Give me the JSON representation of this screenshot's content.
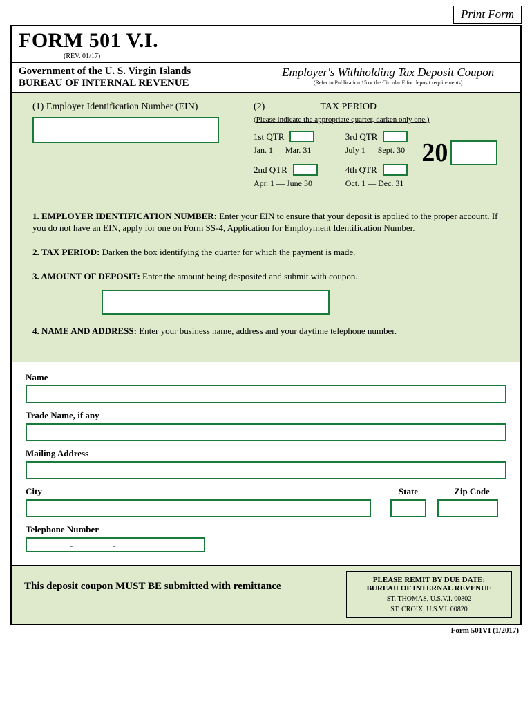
{
  "print_button": "Print Form",
  "header": {
    "form_title": "FORM 501 V.I.",
    "revision": "(REV. 01/17)",
    "govt_line1": "Government of the U. S.  Virgin Islands",
    "govt_line2": "BUREAU OF INTERNAL REVENUE",
    "employer_title": "Employer's Withholding Tax Deposit Coupon",
    "employer_sub": "(Refer to Publication 15 or the Circular E for deposit requirements)"
  },
  "section1": {
    "ein_label": "(1) Employer Identification Number (EIN)",
    "tax_num": "(2)",
    "tax_label": "TAX PERIOD",
    "tax_instruction": "(Please indicate the appropriate quarter, darken only one.)",
    "q1_label": "1st QTR",
    "q1_dates": "Jan. 1 — Mar. 31",
    "q2_label": "2nd QTR",
    "q2_dates": "Apr. 1 — June 30",
    "q3_label": "3rd QTR",
    "q3_dates": "July 1 — Sept. 30",
    "q4_label": "4th QTR",
    "q4_dates": "Oct. 1 — Dec. 31",
    "year_prefix": "20"
  },
  "instructions": {
    "i1_bold": "1. EMPLOYER IDENTIFICATION NUMBER:",
    "i1_text": " Enter your EIN to ensure that your deposit is applied to the proper account.  If you do not have an EIN, apply for one on Form SS-4, Application for Employment Identification Number.",
    "i2_bold": "2. TAX PERIOD:",
    "i2_text": " Darken the box identifying the quarter for which the payment is made.",
    "i3_bold": "3.  AMOUNT OF DEPOSIT:",
    "i3_text": "  Enter the amount being desposited and submit with coupon.",
    "i4_bold": "4.  NAME AND ADDRESS:",
    "i4_text": "  Enter your business name, address and your daytime telephone number."
  },
  "fields": {
    "name": "Name",
    "trade": "Trade Name, if any",
    "mailing": "Mailing Address",
    "city": "City",
    "state": "State",
    "zip": "Zip Code",
    "telephone": "Telephone Number"
  },
  "footer": {
    "left_pre": "This deposit coupon ",
    "left_must": "MUST BE",
    "left_post": " submitted with remittance",
    "remit_title1": "PLEASE REMIT BY DUE DATE:",
    "remit_title2": "BUREAU OF INTERNAL REVENUE",
    "addr1": "ST. THOMAS, U.S.V.I. 00802",
    "addr2": "ST. CROIX, U.S.V.I.  00820",
    "form_id": "Form  501VI  (1/2017)"
  },
  "colors": {
    "green_border": "#1a7a3a",
    "green_bg": "#dfe9cc"
  }
}
